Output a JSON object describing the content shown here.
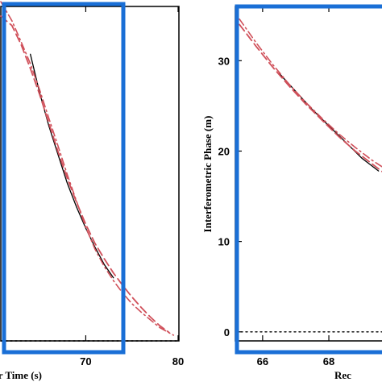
{
  "chart_data": [
    {
      "type": "line",
      "xlabel": "er Time (s)",
      "ylabel": "",
      "x_ticks": [
        70,
        80
      ],
      "y_ticks": [],
      "xlim": [
        60.8,
        80
      ],
      "ylim": [
        0,
        35
      ],
      "highlight_box": {
        "color": "#1a6fd6",
        "x_range": [
          60.8,
          75.2
        ],
        "y_range": [
          -1.1,
          35.9
        ]
      },
      "series": [
        {
          "style": "black-solid",
          "color": "#000000",
          "x": [
            64.0,
            65.0,
            66.0,
            67.0,
            68.0,
            69.0,
            70.0,
            71.0,
            72.0,
            73.0
          ],
          "y": [
            30.0,
            26.0,
            22.5,
            19.5,
            16.5,
            14.0,
            11.8,
            9.8,
            8.0,
            6.6
          ]
        },
        {
          "style": "red-dashed",
          "color": "#d0505a",
          "x": [
            60.8,
            62.0,
            63.0,
            64.0,
            65.0,
            66.0,
            67.0,
            68.0,
            69.0,
            70.0,
            71.0,
            72.0,
            73.0,
            74.0,
            75.0,
            76.0,
            77.0,
            78.0,
            79.0
          ],
          "y": [
            34.0,
            33.0,
            31.0,
            28.5,
            25.8,
            22.8,
            19.8,
            17.0,
            14.5,
            12.2,
            10.2,
            8.6,
            7.1,
            5.8,
            4.6,
            3.5,
            2.5,
            1.6,
            0.9
          ]
        },
        {
          "style": "red-dashdot",
          "color": "#d0505a",
          "x": [
            60.8,
            62.0,
            63.0,
            64.0,
            65.0,
            66.0,
            67.0,
            68.0,
            69.0,
            70.0,
            71.0,
            72.0,
            73.0,
            74.0,
            75.0,
            76.0,
            77.0,
            78.0,
            79.5
          ],
          "y": [
            35.5,
            33.5,
            31.3,
            29.0,
            26.3,
            23.3,
            20.4,
            17.4,
            14.6,
            11.9,
            9.6,
            7.8,
            6.3,
            5.0,
            3.9,
            3.0,
            2.2,
            1.4,
            0.6
          ]
        },
        {
          "style": "black-dotted-baseline",
          "color": "#000000",
          "x": [
            60.8,
            80
          ],
          "y": [
            0,
            0
          ]
        }
      ]
    },
    {
      "type": "line",
      "xlabel": "Rec",
      "ylabel": "Interferometric Phase (m)",
      "x_ticks": [
        66,
        68
      ],
      "y_ticks": [
        0,
        10,
        20,
        30
      ],
      "xlim": [
        65.2,
        69.8
      ],
      "ylim": [
        -1,
        36
      ],
      "highlight_box": {
        "color": "#1a6fd6",
        "x_range": [
          65.2,
          69.8
        ],
        "y_range": [
          -1.1,
          35.9
        ]
      },
      "series": [
        {
          "style": "black-solid",
          "color": "#000000",
          "x": [
            66.5,
            67.0,
            67.5,
            68.0,
            68.5,
            69.0,
            69.5
          ],
          "y": [
            28.6,
            26.6,
            24.6,
            22.8,
            21.0,
            19.2,
            17.8
          ]
        },
        {
          "style": "red-dashed",
          "color": "#d0505a",
          "x": [
            65.3,
            65.8,
            66.3,
            66.8,
            67.3,
            67.8,
            68.3,
            68.8,
            69.3,
            69.8
          ],
          "y": [
            34.0,
            31.6,
            29.3,
            27.2,
            25.2,
            23.4,
            21.6,
            20.0,
            18.6,
            17.2
          ]
        },
        {
          "style": "red-dashdot",
          "color": "#d0505a",
          "x": [
            65.3,
            65.8,
            66.3,
            66.8,
            67.3,
            67.8,
            68.3,
            68.8,
            69.3,
            69.8
          ],
          "y": [
            34.6,
            32.0,
            29.6,
            27.4,
            25.4,
            23.6,
            21.9,
            20.4,
            19.0,
            17.8
          ]
        },
        {
          "style": "black-dotted-baseline",
          "color": "#000000",
          "x": [
            65.2,
            69.8
          ],
          "y": [
            0,
            0
          ]
        }
      ]
    }
  ]
}
